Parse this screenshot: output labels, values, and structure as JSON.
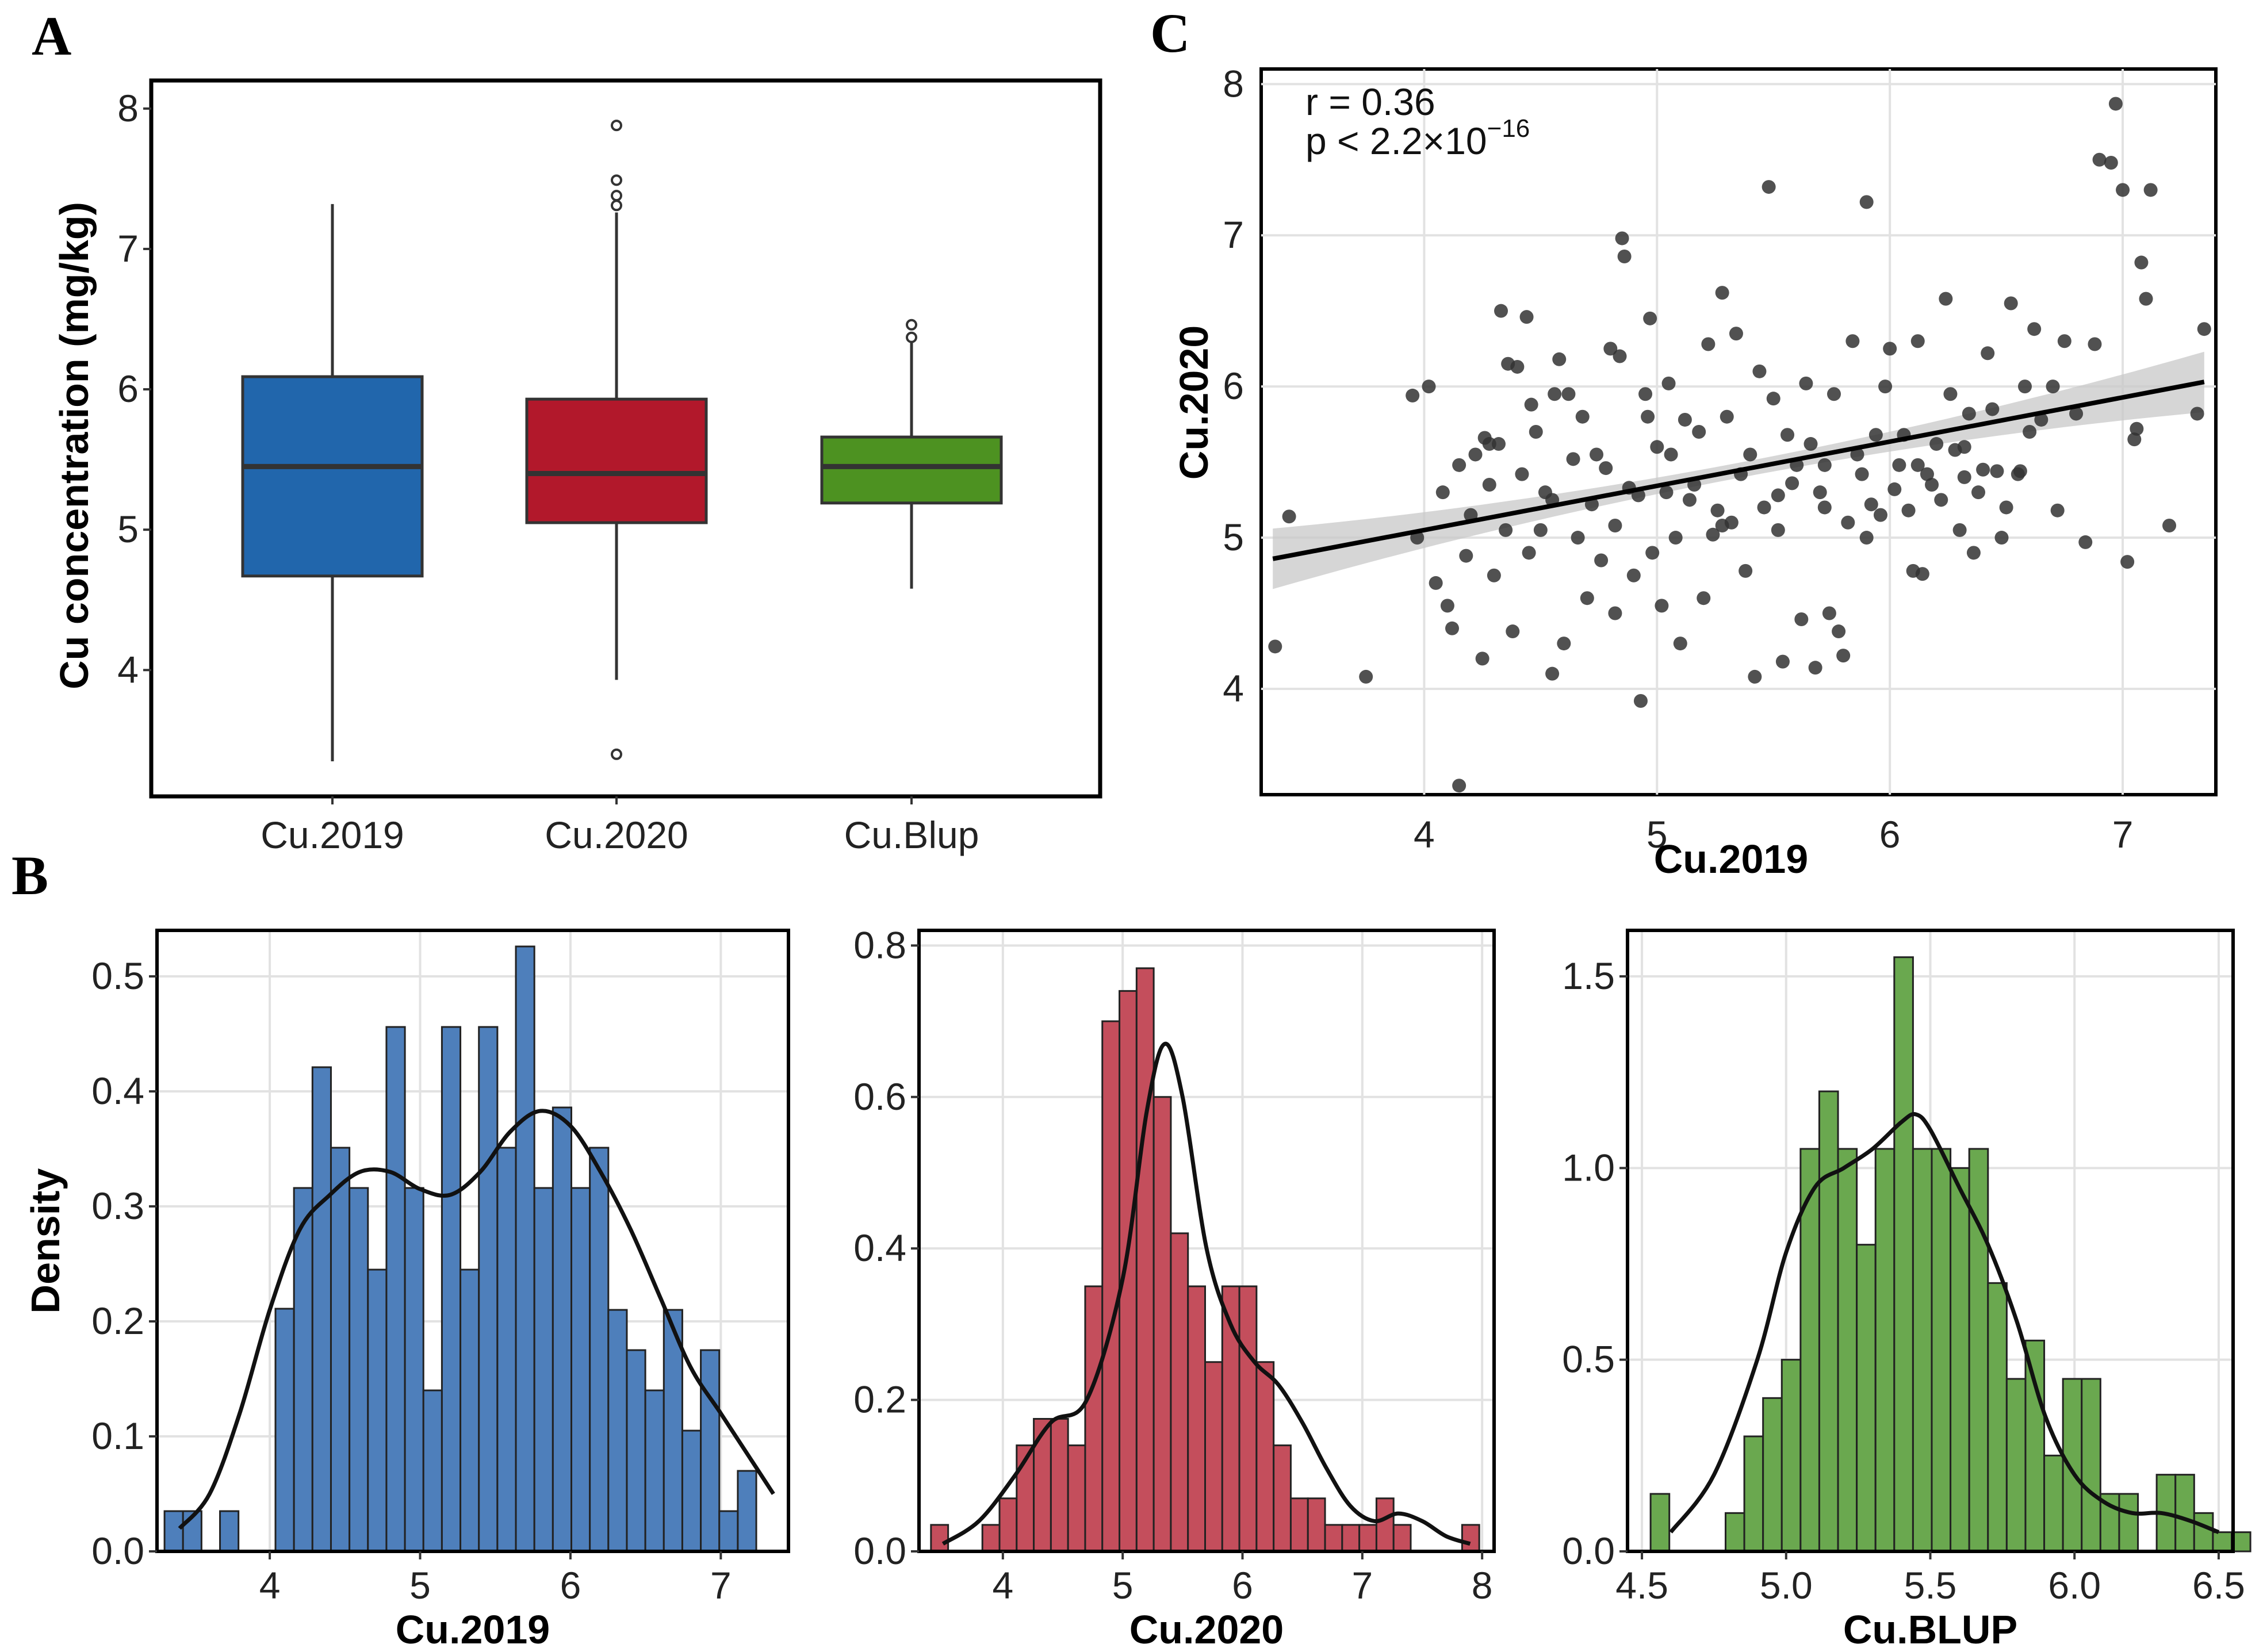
{
  "panels": {
    "A": "A",
    "B": "B",
    "C": "C"
  },
  "chart_data": [
    {
      "id": "A",
      "type": "box",
      "title": "",
      "xlabel": "",
      "ylabel": "Cu concentration (mg/kg)",
      "ylim": [
        3.1,
        8.2
      ],
      "yticks": [
        4,
        5,
        6,
        7,
        8
      ],
      "colors": [
        "#2166ac",
        "#b2182b",
        "#4d9221"
      ],
      "categories": [
        "Cu.2019",
        "Cu.2020",
        "Cu.Blup"
      ],
      "boxes": [
        {
          "name": "Cu.2019",
          "min": 3.35,
          "q1": 4.67,
          "median": 5.45,
          "q3": 6.09,
          "max": 7.32,
          "outliers": []
        },
        {
          "name": "Cu.2020",
          "min": 3.93,
          "q1": 5.05,
          "median": 5.4,
          "q3": 5.93,
          "max": 7.26,
          "outliers": [
            7.88,
            7.49,
            7.38,
            7.31,
            3.4
          ]
        },
        {
          "name": "Cu.Blup",
          "min": 4.58,
          "q1": 5.19,
          "median": 5.45,
          "q3": 5.66,
          "max": 6.33,
          "outliers": [
            6.46,
            6.37
          ]
        }
      ]
    },
    {
      "id": "B1",
      "type": "histogram",
      "xlabel": "Cu.2019",
      "ylabel": "Density",
      "color": "#4e7fbb",
      "xlim": [
        3.25,
        7.45
      ],
      "ylim": [
        0,
        0.54
      ],
      "xticks": [
        4,
        5,
        6,
        7
      ],
      "yticks": [
        0.0,
        0.1,
        0.2,
        0.3,
        0.4,
        0.5
      ],
      "bin_start": 3.3,
      "bin_width": 0.123,
      "values": [
        0.035,
        0.035,
        0,
        0.035,
        0,
        0,
        0.211,
        0.316,
        0.421,
        0.351,
        0.316,
        0.245,
        0.456,
        0.316,
        0.14,
        0.456,
        0.245,
        0.456,
        0.351,
        0.526,
        0.316,
        0.386,
        0.316,
        0.351,
        0.21,
        0.175,
        0.14,
        0.21,
        0.105,
        0.175,
        0.035,
        0.07
      ],
      "density_x": [
        3.4,
        3.6,
        3.8,
        4.0,
        4.2,
        4.4,
        4.6,
        4.8,
        5.0,
        5.2,
        5.4,
        5.6,
        5.8,
        6.0,
        6.2,
        6.4,
        6.6,
        6.8,
        7.0,
        7.2,
        7.35
      ],
      "density_y": [
        0.02,
        0.05,
        0.12,
        0.21,
        0.28,
        0.31,
        0.33,
        0.33,
        0.315,
        0.31,
        0.33,
        0.365,
        0.383,
        0.37,
        0.33,
        0.28,
        0.22,
        0.16,
        0.12,
        0.08,
        0.05
      ]
    },
    {
      "id": "B2",
      "type": "histogram",
      "xlabel": "Cu.2020",
      "ylabel": "",
      "color": "#c44e5c",
      "xlim": [
        3.3,
        8.1
      ],
      "ylim": [
        0,
        0.82
      ],
      "xticks": [
        4,
        5,
        6,
        7,
        8
      ],
      "yticks": [
        0.0,
        0.2,
        0.4,
        0.6,
        0.8
      ],
      "bin_start": 3.4,
      "bin_width": 0.143,
      "values": [
        0.035,
        0,
        0,
        0.035,
        0.07,
        0.14,
        0.175,
        0.175,
        0.14,
        0.35,
        0.7,
        0.74,
        0.77,
        0.6,
        0.42,
        0.35,
        0.25,
        0.35,
        0.35,
        0.25,
        0.14,
        0.07,
        0.07,
        0.035,
        0.035,
        0.035,
        0.07,
        0.035,
        0,
        0,
        0,
        0.035
      ],
      "density_x": [
        3.5,
        3.8,
        4.1,
        4.4,
        4.7,
        5.0,
        5.2,
        5.35,
        5.5,
        5.7,
        5.9,
        6.1,
        6.3,
        6.5,
        6.7,
        6.9,
        7.1,
        7.3,
        7.5,
        7.7,
        7.9
      ],
      "density_y": [
        0.01,
        0.04,
        0.1,
        0.17,
        0.2,
        0.36,
        0.58,
        0.67,
        0.6,
        0.4,
        0.3,
        0.25,
        0.22,
        0.17,
        0.11,
        0.06,
        0.04,
        0.05,
        0.04,
        0.02,
        0.01
      ]
    },
    {
      "id": "B3",
      "type": "histogram",
      "xlabel": "Cu.BLUP",
      "ylabel": "",
      "color": "#6aa84f",
      "xlim": [
        4.45,
        6.55
      ],
      "ylim": [
        0,
        1.62
      ],
      "xticks": [
        4.5,
        5.0,
        5.5,
        6.0,
        6.5
      ],
      "yticks": [
        0.0,
        0.5,
        1.0,
        1.5
      ],
      "bin_start": 4.53,
      "bin_width": 0.065,
      "values": [
        0.15,
        0,
        0,
        0,
        0.1,
        0.3,
        0.4,
        0.5,
        1.05,
        1.2,
        1.05,
        0.8,
        1.05,
        1.55,
        1.05,
        1.05,
        1.0,
        1.05,
        0.7,
        0.45,
        0.55,
        0.25,
        0.45,
        0.45,
        0.15,
        0.15,
        0,
        0.2,
        0.2,
        0.1,
        0.05,
        0.05
      ],
      "density_x": [
        4.6,
        4.75,
        4.9,
        5.0,
        5.1,
        5.2,
        5.3,
        5.4,
        5.45,
        5.5,
        5.6,
        5.7,
        5.8,
        5.9,
        6.0,
        6.1,
        6.2,
        6.3,
        6.4,
        6.5
      ],
      "density_y": [
        0.05,
        0.2,
        0.5,
        0.78,
        0.95,
        1.0,
        1.05,
        1.12,
        1.14,
        1.1,
        0.95,
        0.8,
        0.6,
        0.35,
        0.2,
        0.13,
        0.1,
        0.1,
        0.08,
        0.05
      ]
    },
    {
      "id": "C",
      "type": "scatter",
      "xlabel": "Cu.2019",
      "ylabel": "Cu.2020",
      "xlim": [
        3.3,
        7.4
      ],
      "ylim": [
        3.3,
        8.1
      ],
      "xticks": [
        4,
        5,
        6,
        7
      ],
      "yticks": [
        4,
        5,
        6,
        7,
        8
      ],
      "annotation_r": "r = 0.36",
      "annotation_p": "p < 2.2×10",
      "annotation_p_exp": "−16",
      "fit": {
        "x": [
          3.35,
          7.35
        ],
        "y": [
          4.86,
          6.03
        ],
        "ci_halfwidth_ends": 0.2,
        "ci_halfwidth_mid": 0.05
      },
      "points": [
        [
          3.36,
          4.28
        ],
        [
          3.42,
          5.14
        ],
        [
          3.75,
          4.08
        ],
        [
          3.95,
          5.94
        ],
        [
          3.97,
          5.0
        ],
        [
          4.02,
          6.0
        ],
        [
          4.05,
          4.7
        ],
        [
          4.08,
          5.3
        ],
        [
          4.1,
          4.55
        ],
        [
          4.12,
          4.4
        ],
        [
          4.15,
          3.36
        ],
        [
          4.15,
          5.48
        ],
        [
          4.18,
          4.88
        ],
        [
          4.2,
          5.15
        ],
        [
          4.22,
          5.55
        ],
        [
          4.25,
          4.2
        ],
        [
          4.26,
          5.66
        ],
        [
          4.28,
          5.35
        ],
        [
          4.3,
          4.75
        ],
        [
          4.32,
          5.62
        ],
        [
          4.33,
          6.5
        ],
        [
          4.35,
          5.05
        ],
        [
          4.36,
          6.15
        ],
        [
          4.38,
          4.38
        ],
        [
          4.4,
          6.13
        ],
        [
          4.42,
          5.42
        ],
        [
          4.44,
          6.46
        ],
        [
          4.45,
          4.9
        ],
        [
          4.46,
          5.88
        ],
        [
          4.48,
          5.7
        ],
        [
          4.5,
          5.05
        ],
        [
          4.52,
          5.3
        ],
        [
          4.55,
          4.1
        ],
        [
          4.56,
          5.95
        ],
        [
          4.58,
          6.18
        ],
        [
          4.6,
          4.3
        ],
        [
          4.62,
          5.95
        ],
        [
          4.64,
          5.52
        ],
        [
          4.66,
          5.0
        ],
        [
          4.7,
          4.6
        ],
        [
          4.72,
          5.22
        ],
        [
          4.74,
          5.55
        ],
        [
          4.76,
          4.85
        ],
        [
          4.78,
          5.46
        ],
        [
          4.8,
          6.25
        ],
        [
          4.82,
          4.5
        ],
        [
          4.84,
          6.2
        ],
        [
          4.85,
          6.98
        ],
        [
          4.86,
          6.86
        ],
        [
          4.88,
          5.33
        ],
        [
          4.9,
          4.75
        ],
        [
          4.92,
          5.28
        ],
        [
          4.93,
          3.92
        ],
        [
          4.95,
          5.95
        ],
        [
          4.96,
          5.8
        ],
        [
          4.97,
          6.45
        ],
        [
          4.98,
          4.9
        ],
        [
          5.0,
          5.6
        ],
        [
          5.02,
          4.55
        ],
        [
          5.04,
          5.3
        ],
        [
          5.05,
          6.02
        ],
        [
          5.08,
          5.0
        ],
        [
          5.1,
          4.3
        ],
        [
          5.12,
          5.78
        ],
        [
          5.14,
          5.25
        ],
        [
          5.16,
          5.35
        ],
        [
          5.18,
          5.7
        ],
        [
          5.2,
          4.6
        ],
        [
          5.22,
          6.28
        ],
        [
          5.24,
          5.02
        ],
        [
          5.26,
          5.18
        ],
        [
          5.28,
          6.62
        ],
        [
          5.3,
          5.8
        ],
        [
          5.32,
          5.1
        ],
        [
          5.34,
          6.35
        ],
        [
          5.36,
          5.42
        ],
        [
          5.38,
          4.78
        ],
        [
          5.4,
          5.55
        ],
        [
          5.42,
          4.08
        ],
        [
          5.44,
          6.1
        ],
        [
          5.46,
          5.2
        ],
        [
          5.48,
          7.32
        ],
        [
          5.5,
          5.92
        ],
        [
          5.52,
          5.05
        ],
        [
          5.54,
          4.18
        ],
        [
          5.56,
          5.68
        ],
        [
          5.58,
          5.36
        ],
        [
          5.6,
          5.48
        ],
        [
          5.62,
          4.46
        ],
        [
          5.64,
          6.02
        ],
        [
          5.66,
          5.62
        ],
        [
          5.68,
          4.14
        ],
        [
          5.7,
          5.3
        ],
        [
          5.72,
          5.48
        ],
        [
          5.74,
          4.5
        ],
        [
          5.76,
          5.95
        ],
        [
          5.78,
          4.38
        ],
        [
          5.8,
          4.22
        ],
        [
          5.82,
          5.1
        ],
        [
          5.84,
          6.3
        ],
        [
          5.86,
          5.55
        ],
        [
          5.88,
          5.42
        ],
        [
          5.9,
          7.22
        ],
        [
          5.92,
          5.22
        ],
        [
          5.94,
          5.68
        ],
        [
          5.96,
          5.15
        ],
        [
          5.98,
          6.0
        ],
        [
          6.0,
          6.25
        ],
        [
          6.02,
          5.32
        ],
        [
          6.04,
          5.48
        ],
        [
          6.06,
          5.68
        ],
        [
          6.08,
          5.18
        ],
        [
          6.1,
          4.78
        ],
        [
          6.12,
          6.3
        ],
        [
          6.14,
          4.76
        ],
        [
          6.16,
          5.42
        ],
        [
          6.18,
          5.35
        ],
        [
          6.2,
          5.62
        ],
        [
          6.22,
          5.25
        ],
        [
          6.24,
          6.58
        ],
        [
          6.26,
          5.95
        ],
        [
          6.28,
          5.58
        ],
        [
          6.3,
          5.05
        ],
        [
          6.32,
          5.4
        ],
        [
          6.34,
          5.82
        ],
        [
          6.36,
          4.9
        ],
        [
          6.38,
          5.3
        ],
        [
          6.4,
          5.45
        ],
        [
          6.42,
          6.22
        ],
        [
          6.44,
          5.85
        ],
        [
          6.46,
          5.44
        ],
        [
          6.48,
          5.0
        ],
        [
          6.5,
          5.2
        ],
        [
          6.52,
          6.55
        ],
        [
          6.55,
          5.42
        ],
        [
          6.58,
          6.0
        ],
        [
          6.6,
          5.7
        ],
        [
          6.62,
          6.38
        ],
        [
          6.65,
          5.78
        ],
        [
          6.7,
          6.0
        ],
        [
          6.72,
          5.18
        ],
        [
          6.75,
          6.3
        ],
        [
          6.8,
          5.82
        ],
        [
          6.84,
          4.97
        ],
        [
          6.88,
          6.28
        ],
        [
          6.9,
          7.5
        ],
        [
          6.95,
          7.48
        ],
        [
          6.97,
          7.87
        ],
        [
          7.0,
          7.3
        ],
        [
          7.02,
          4.84
        ],
        [
          7.05,
          5.65
        ],
        [
          7.08,
          6.82
        ],
        [
          7.1,
          6.58
        ],
        [
          7.12,
          7.3
        ],
        [
          7.2,
          5.08
        ],
        [
          7.32,
          5.82
        ],
        [
          7.35,
          6.38
        ],
        [
          7.06,
          5.72
        ],
        [
          4.28,
          5.62
        ],
        [
          4.68,
          5.8
        ],
        [
          5.06,
          5.55
        ],
        [
          5.28,
          5.08
        ],
        [
          5.52,
          5.28
        ],
        [
          5.72,
          5.2
        ],
        [
          5.9,
          5.0
        ],
        [
          6.12,
          5.48
        ],
        [
          6.32,
          5.6
        ],
        [
          6.56,
          5.44
        ],
        [
          4.55,
          5.25
        ],
        [
          4.82,
          5.08
        ]
      ]
    }
  ]
}
